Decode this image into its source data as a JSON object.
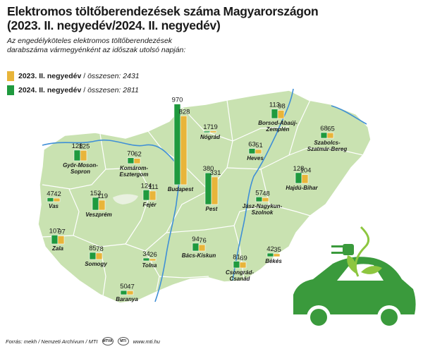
{
  "title": "Elektromos töltőberendezések száma Magyarországon",
  "subtitle": "(2023. II. negyedév/2024. II. negyedév)",
  "description": "Az engedélyköteles elektromos töltőberendezések darabszáma vármegyénként az időszak utolsó napján:",
  "legend": [
    {
      "label": "2023. II. negyedév",
      "sep": " / ",
      "total": "összesen: 2431",
      "color": "#e8b53a"
    },
    {
      "label": "2024. II. negyedév",
      "sep": " / ",
      "total": "összesen: 2811",
      "color": "#1f9a3e"
    }
  ],
  "footer": {
    "source": "Forrás: mekh / Nemzeti Archívum / MTI",
    "url": "www.mti.hu",
    "logo1": "MTVA",
    "logo2": "MTI"
  },
  "colors": {
    "y2023": "#e8b53a",
    "y2024": "#1f9a3e",
    "map": "#c9e2b1",
    "river": "#3f8fd6",
    "car": "#3a9a3c"
  },
  "chart_data": {
    "type": "bar",
    "title": "Elektromos töltőberendezések száma Magyarországon",
    "subtitle": "(2023. II. negyedév/2024. II. negyedév)",
    "series_labels": [
      "2023. II. negyedév",
      "2024. II. negyedév"
    ],
    "counties": [
      {
        "name": "Győr-Moson-Sopron",
        "v2023": 125,
        "v2024": 128
      },
      {
        "name": "Komárom-Esztergom",
        "v2023": 62,
        "v2024": 70
      },
      {
        "name": "Budapest",
        "v2023": 828,
        "v2024": 970
      },
      {
        "name": "Nógrád",
        "v2023": 19,
        "v2024": 17
      },
      {
        "name": "Borsod-Abaúj-Zemplén",
        "v2023": 98,
        "v2024": 113
      },
      {
        "name": "Heves",
        "v2023": 51,
        "v2024": 63
      },
      {
        "name": "Szabolcs-Szatmár-Bereg",
        "v2023": 65,
        "v2024": 68
      },
      {
        "name": "Vas",
        "v2023": 42,
        "v2024": 47
      },
      {
        "name": "Veszprém",
        "v2023": 119,
        "v2024": 153
      },
      {
        "name": "Fejér",
        "v2023": 111,
        "v2024": 124
      },
      {
        "name": "Pest",
        "v2023": 331,
        "v2024": 380
      },
      {
        "name": "Jász-Nagykun-Szolnok",
        "v2023": 48,
        "v2024": 57
      },
      {
        "name": "Hajdú-Bihar",
        "v2023": 104,
        "v2024": 128
      },
      {
        "name": "Zala",
        "v2023": 97,
        "v2024": 107
      },
      {
        "name": "Somogy",
        "v2023": 78,
        "v2024": 85
      },
      {
        "name": "Tolna",
        "v2023": 26,
        "v2024": 34
      },
      {
        "name": "Bács-Kiskun",
        "v2023": 76,
        "v2024": 94
      },
      {
        "name": "Csongrád-Csanád",
        "v2023": 69,
        "v2024": 81
      },
      {
        "name": "Békés",
        "v2023": 35,
        "v2024": 42
      },
      {
        "name": "Baranya",
        "v2023": 47,
        "v2024": 50
      }
    ]
  }
}
